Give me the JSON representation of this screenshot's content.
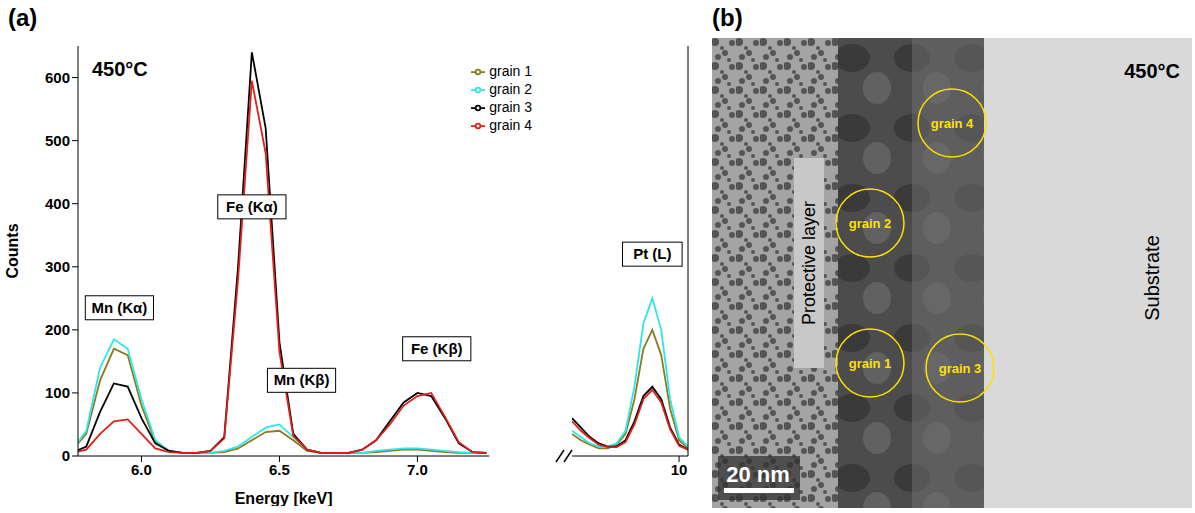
{
  "panel_labels": [
    "(a)",
    "(b)"
  ],
  "chart_data": [
    {
      "type": "line",
      "title": "450°C",
      "xlabel": "Energy [keV]",
      "ylabel": "Counts",
      "legend": "upper right",
      "x": [
        5.75,
        5.8,
        5.85,
        5.9,
        5.95,
        6.0,
        6.05,
        6.1,
        6.15,
        6.2,
        6.25,
        6.3,
        6.35,
        6.4,
        6.45,
        6.5,
        6.55,
        6.6,
        6.65,
        6.7,
        6.75,
        6.8,
        6.85,
        6.9,
        6.95,
        7.0,
        7.05,
        7.1,
        7.15,
        7.2,
        7.25
      ],
      "series": [
        {
          "name": "grain 1",
          "color": "#8c7a1e",
          "values": [
            10,
            35,
            120,
            170,
            160,
            80,
            22,
            8,
            5,
            5,
            5,
            6,
            12,
            25,
            38,
            40,
            25,
            8,
            5,
            5,
            5,
            5,
            6,
            8,
            10,
            10,
            8,
            6,
            5,
            5,
            5
          ]
        },
        {
          "name": "grain 2",
          "color": "#2fe6e6",
          "values": [
            10,
            40,
            140,
            185,
            170,
            90,
            25,
            8,
            5,
            5,
            5,
            8,
            15,
            30,
            45,
            50,
            30,
            10,
            5,
            5,
            5,
            5,
            8,
            10,
            12,
            12,
            10,
            8,
            6,
            5,
            5
          ]
        },
        {
          "name": "grain 3",
          "color": "#000000",
          "values": [
            5,
            15,
            70,
            115,
            110,
            60,
            20,
            8,
            5,
            5,
            8,
            30,
            300,
            640,
            520,
            180,
            35,
            10,
            5,
            5,
            5,
            10,
            25,
            55,
            85,
            100,
            95,
            60,
            20,
            6,
            5
          ]
        },
        {
          "name": "grain 4",
          "color": "#e0201a",
          "values": [
            5,
            10,
            35,
            55,
            58,
            35,
            12,
            6,
            5,
            5,
            8,
            28,
            280,
            595,
            480,
            165,
            32,
            10,
            5,
            5,
            5,
            10,
            25,
            50,
            80,
            95,
            100,
            62,
            22,
            6,
            5
          ]
        }
      ],
      "xlim": [
        5.77,
        7.26
      ],
      "xticks": [
        {
          "value": 6,
          "label": "6.0"
        },
        {
          "value": 6.5,
          "label": "6.5"
        },
        {
          "value": 7,
          "label": "7.0"
        }
      ],
      "ylim": [
        0,
        650
      ],
      "yticks": [
        0,
        100,
        200,
        300,
        400,
        500,
        600
      ],
      "annotations": [
        {
          "text": "Mn (Kα)",
          "x": 5.92,
          "y": 235
        },
        {
          "text": "Fe (Kα)",
          "x": 6.4,
          "y": 395
        },
        {
          "text": "Mn (Kβ)",
          "x": 6.58,
          "y": 120
        },
        {
          "text": "Fe (Kβ)",
          "x": 7.07,
          "y": 170
        }
      ]
    },
    {
      "type": "line",
      "x": [
        9.4,
        9.45,
        9.5,
        9.55,
        9.6,
        9.65,
        9.7,
        9.75,
        9.8,
        9.85,
        9.9,
        9.95,
        10.0,
        10.05
      ],
      "series": [
        {
          "color": "#8c7a1e",
          "values": [
            35,
            25,
            18,
            12,
            12,
            18,
            35,
            90,
            170,
            200,
            160,
            75,
            25,
            12
          ]
        },
        {
          "color": "#2fe6e6",
          "values": [
            40,
            30,
            20,
            15,
            15,
            20,
            40,
            110,
            210,
            250,
            200,
            90,
            30,
            15
          ]
        },
        {
          "color": "#000000",
          "values": [
            60,
            45,
            30,
            20,
            15,
            15,
            25,
            55,
            95,
            110,
            90,
            45,
            18,
            10
          ]
        },
        {
          "color": "#e0201a",
          "values": [
            55,
            40,
            28,
            18,
            14,
            14,
            22,
            50,
            90,
            105,
            85,
            42,
            16,
            10
          ]
        }
      ],
      "xlim": [
        9.4,
        10.05
      ],
      "xticks": [
        10
      ],
      "ylim": [
        0,
        650
      ],
      "yticks": [
        0,
        100,
        200,
        300,
        400,
        500,
        600
      ],
      "tick_labels": "x",
      "annotations": [
        {
          "text": "Pt (L)",
          "x": 9.85,
          "y": 320
        }
      ]
    }
  ],
  "image": {
    "title": "450°C",
    "regions": [
      "Protective layer",
      "Substrate"
    ],
    "grains": [
      "grain 4",
      "grain 2",
      "grain 1",
      "grain 3"
    ],
    "scale_bar": "20 nm"
  }
}
